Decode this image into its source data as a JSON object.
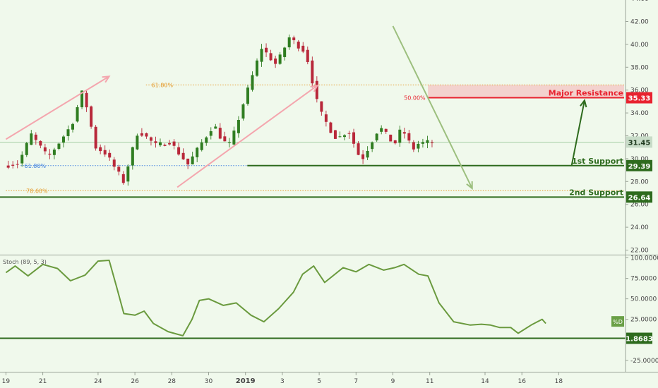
{
  "chart_data": [
    {
      "type": "candlestick",
      "title": "",
      "ylim": [
        21.5,
        44.2
      ],
      "y_ticks": [
        "44.00",
        "42.00",
        "40.00",
        "38.00",
        "36.00",
        "34.00",
        "32.00",
        "30.00",
        "28.00",
        "26.00",
        "24.00",
        "22.00"
      ],
      "y_tick_values": [
        44,
        42,
        40,
        38,
        36,
        34,
        32,
        30,
        28,
        26,
        24,
        22
      ],
      "x_ticks": [
        "19",
        "21",
        "24",
        "26",
        "28",
        "30",
        "2019",
        "3",
        "5",
        "7",
        "9",
        "11",
        "14",
        "16",
        "18"
      ],
      "price_path_days": [
        0,
        0.8,
        1.5,
        2.4,
        3,
        3.7,
        4.3,
        5,
        5.5,
        5.8,
        6.5,
        7.3,
        8.3,
        9,
        10,
        11.4,
        11.9,
        12.3,
        13,
        14,
        14.8,
        15.5,
        16.4,
        17.1,
        17.7,
        18.1,
        18.7,
        19.4,
        20.4,
        21.2,
        21.6,
        22.2,
        22.5,
        23.1,
        24,
        25.4,
        26.2,
        26.8
      ],
      "price_path_values": [
        29.4,
        29.6,
        32.1,
        30.1,
        31.4,
        33.0,
        36.0,
        31.0,
        30.5,
        29.8,
        28.0,
        32.5,
        31.1,
        31.5,
        29.5,
        33.0,
        31.5,
        31.2,
        34.8,
        39.7,
        38.2,
        40.6,
        39.3,
        34.3,
        32.6,
        31.7,
        32.5,
        29.8,
        32.8,
        31.2,
        32.7,
        30.8,
        31.3,
        31.45,
        31.45,
        31.45,
        31.45,
        31.45
      ],
      "last_candle_day": 23.1,
      "levels": [
        {
          "label": "Major Resistance",
          "value": 35.33,
          "value_label": "35.33",
          "color": "#e8232f"
        },
        {
          "label": "1st Support",
          "value": 29.39,
          "value_label": "29.39",
          "color": "#2e6b1e"
        },
        {
          "label": "2nd Support",
          "value": 26.64,
          "value_label": "26.64",
          "color": "#2e6b1e"
        }
      ],
      "current_price": {
        "value": 31.45,
        "label": "31.45"
      },
      "fib_levels": [
        {
          "label": "61.80%",
          "value": 36.45,
          "color": "#e59b2c"
        },
        {
          "label": "50.00%",
          "value": 35.33,
          "color": "#e8232f"
        },
        {
          "label": "61.80%",
          "value": 29.39,
          "color": "#3d7fe0"
        },
        {
          "label": "78.60%",
          "value": 27.2,
          "color": "#e59b2c"
        }
      ],
      "resistance_zone": [
        35.33,
        36.45
      ],
      "trend_arrows": [
        {
          "from": [
            0,
            31.7
          ],
          "to": [
            5.6,
            37.2
          ],
          "color": "#f4a6ae"
        },
        {
          "from": [
            9.3,
            27.5
          ],
          "to": [
            16.9,
            36.4
          ],
          "color": "#f4a6ae"
        },
        {
          "from": [
            21.0,
            41.6
          ],
          "to": [
            25.3,
            27.4
          ],
          "color": "#9cbf7e"
        },
        {
          "from": [
            30.7,
            29.4
          ],
          "to": [
            31.4,
            35.1
          ],
          "color": "#2e6b1e"
        }
      ]
    },
    {
      "type": "line",
      "title": "Stoch (89, 5, 3)",
      "ylim": [
        -34,
        106
      ],
      "y_ticks": [
        "100.0000",
        "75.0000",
        "50.0000",
        "25.0000",
        "-25.0000"
      ],
      "y_tick_values": [
        100,
        75,
        50,
        25,
        -25
      ],
      "series": [
        {
          "name": "%D",
          "color": "#6a9a3e",
          "x": [
            0,
            0.5,
            1.2,
            2,
            2.8,
            3.5,
            4.3,
            5,
            5.6,
            6,
            6.4,
            7,
            7.5,
            8,
            8.8,
            9.6,
            10.1,
            10.5,
            11,
            11.8,
            12.5,
            13.3,
            14,
            14.8,
            15.6,
            16.1,
            16.7,
            17.3,
            18.3,
            19,
            19.7,
            20.5,
            21.1,
            21.6,
            22.4,
            22.9,
            23.5,
            24.3,
            25.2,
            25.8,
            26.3,
            26.8,
            27.4,
            27.8,
            28.5,
            29.1,
            29.3
          ],
          "y": [
            82,
            90,
            78,
            92,
            87,
            72,
            79,
            96,
            97,
            65,
            32,
            30,
            35,
            20,
            10,
            5,
            25,
            48,
            50,
            42,
            45,
            30,
            22,
            38,
            58,
            80,
            90,
            70,
            88,
            83,
            92,
            85,
            88,
            92,
            80,
            78,
            45,
            22,
            18,
            19,
            18,
            15,
            15,
            8,
            18,
            25,
            20
          ]
        }
      ],
      "current": {
        "label": "%D"
      },
      "level": {
        "value": 1.8683,
        "label": "1.8683",
        "color": "#2e6b1e"
      }
    }
  ]
}
